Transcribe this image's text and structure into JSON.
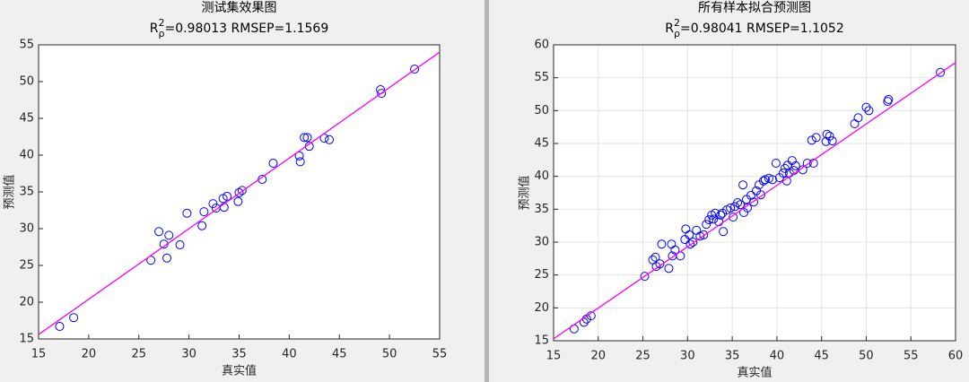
{
  "chart_data": [
    {
      "type": "scatter",
      "title": "测试集效果图",
      "subtitle": {
        "base": "R",
        "sup": "2",
        "sub": "ρ",
        "rest": "=0.98013  RMSEP=1.1569"
      },
      "xlabel": "真实值",
      "ylabel": "预测值",
      "xlim": [
        15,
        55
      ],
      "ylim": [
        15,
        55
      ],
      "xticks": [
        15,
        20,
        25,
        30,
        35,
        40,
        45,
        50,
        55
      ],
      "yticks": [
        15,
        20,
        25,
        30,
        35,
        40,
        45,
        50,
        55
      ],
      "grid": false,
      "series": [
        {
          "color": "#0000ff",
          "x": [
            17.1,
            18.5,
            26.2,
            27.0,
            27.5,
            28.0,
            27.8,
            29.1,
            29.8,
            31.3,
            31.5,
            32.4,
            32.7,
            33.4,
            33.5,
            33.8,
            34.9,
            35.0,
            35.3,
            37.3,
            38.4,
            41.0,
            41.1,
            41.5,
            41.8,
            42.0,
            43.5,
            44.0,
            49.2,
            49.1,
            52.5
          ],
          "values": [
            16.7,
            17.9,
            25.7,
            29.6,
            27.9,
            29.1,
            26.0,
            27.8,
            32.1,
            30.4,
            32.3,
            33.4,
            32.8,
            34.1,
            32.9,
            34.4,
            33.7,
            34.9,
            35.2,
            36.7,
            38.9,
            39.9,
            39.1,
            42.4,
            42.4,
            41.2,
            42.3,
            42.1,
            48.4,
            48.9,
            51.7
          ]
        }
      ],
      "fit": {
        "color": "#ff00ff",
        "x": [
          15,
          55
        ],
        "values": [
          15.6,
          54
        ]
      }
    },
    {
      "type": "scatter",
      "title": "所有样本拟合预测图",
      "subtitle": {
        "base": "R",
        "sup": "2",
        "sub": "ρ",
        "rest": "=0.98041  RMSEP=1.1052"
      },
      "xlabel": "真实值",
      "ylabel": "预测值",
      "xlim": [
        15,
        60
      ],
      "ylim": [
        15,
        60
      ],
      "xticks": [
        15,
        20,
        25,
        30,
        35,
        40,
        45,
        50,
        55,
        60
      ],
      "yticks": [
        15,
        20,
        25,
        30,
        35,
        40,
        45,
        50,
        55,
        60
      ],
      "grid": true,
      "series": [
        {
          "color": "#0000ff",
          "x": [
            17.3,
            18.4,
            18.7,
            19.2,
            25.2,
            26.1,
            26.5,
            26.4,
            26.9,
            27.1,
            27.9,
            28.2,
            28.6,
            28.3,
            29.2,
            29.7,
            29.8,
            30.2,
            30.3,
            30.6,
            31.0,
            31.4,
            31.8,
            32.1,
            32.4,
            32.7,
            32.9,
            33.1,
            33.5,
            33.7,
            33.9,
            34.0,
            34.4,
            34.8,
            35.1,
            35.3,
            35.6,
            35.9,
            36.2,
            36.3,
            36.6,
            36.7,
            37.1,
            37.4,
            37.7,
            38.0,
            38.2,
            38.5,
            38.7,
            39.1,
            39.5,
            39.9,
            40.3,
            40.7,
            40.9,
            41.1,
            41.2,
            41.4,
            41.7,
            41.9,
            42.1,
            42.9,
            43.4,
            43.9,
            44.1,
            44.4,
            45.5,
            45.6,
            45.9,
            46.2,
            48.7,
            49.1,
            50.0,
            50.3,
            52.4,
            52.5,
            58.3
          ],
          "values": [
            16.8,
            17.8,
            18.3,
            18.8,
            24.8,
            27.3,
            26.3,
            27.7,
            26.7,
            29.7,
            26.0,
            29.7,
            28.8,
            27.9,
            27.9,
            30.4,
            32.0,
            31.1,
            29.7,
            30.0,
            31.8,
            30.9,
            31.1,
            32.7,
            33.4,
            34.1,
            33.5,
            34.4,
            33.1,
            34.1,
            34.4,
            31.6,
            34.9,
            35.2,
            33.8,
            35.4,
            36.0,
            35.7,
            38.7,
            34.5,
            36.5,
            35.2,
            37.1,
            36.1,
            37.8,
            38.7,
            37.2,
            39.3,
            39.5,
            39.7,
            39.5,
            42.0,
            39.8,
            40.5,
            41.2,
            39.3,
            41.7,
            40.5,
            42.4,
            40.9,
            41.6,
            41.0,
            42.0,
            45.5,
            42.0,
            45.9,
            45.3,
            46.4,
            46.1,
            45.4,
            48.0,
            48.9,
            50.5,
            50.0,
            51.4,
            51.7,
            55.8
          ]
        }
      ],
      "fit": {
        "color": "#ff00ff",
        "x": [
          15,
          60
        ],
        "values": [
          15.3,
          57.3
        ]
      }
    }
  ]
}
